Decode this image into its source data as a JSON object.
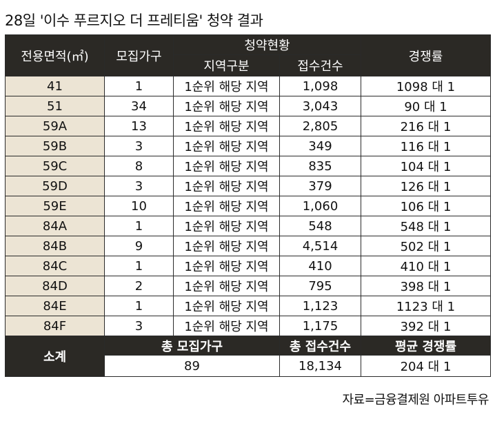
{
  "title": "28일 '이수 푸르지오 더 프레티움' 청약 결과",
  "headers": {
    "area": "전용면적(㎡)",
    "units": "모집가구",
    "status": "청약현황",
    "region": "지역구분",
    "applications": "접수건수",
    "ratio": "경쟁률"
  },
  "rows": [
    {
      "area": "41",
      "units": "1",
      "region": "1순위 해당 지역",
      "applications": "1,098",
      "ratio": "1098 대 1"
    },
    {
      "area": "51",
      "units": "34",
      "region": "1순위 해당 지역",
      "applications": "3,043",
      "ratio": "90 대 1"
    },
    {
      "area": "59A",
      "units": "13",
      "region": "1순위 해당 지역",
      "applications": "2,805",
      "ratio": "216 대 1"
    },
    {
      "area": "59B",
      "units": "3",
      "region": "1순위 해당 지역",
      "applications": "349",
      "ratio": "116 대 1"
    },
    {
      "area": "59C",
      "units": "8",
      "region": "1순위 해당 지역",
      "applications": "835",
      "ratio": "104 대 1"
    },
    {
      "area": "59D",
      "units": "3",
      "region": "1순위 해당 지역",
      "applications": "379",
      "ratio": "126 대 1"
    },
    {
      "area": "59E",
      "units": "10",
      "region": "1순위 해당 지역",
      "applications": "1,060",
      "ratio": "106 대 1"
    },
    {
      "area": "84A",
      "units": "1",
      "region": "1순위 해당 지역",
      "applications": "548",
      "ratio": "548 대 1"
    },
    {
      "area": "84B",
      "units": "9",
      "region": "1순위 해당 지역",
      "applications": "4,514",
      "ratio": "502 대 1"
    },
    {
      "area": "84C",
      "units": "1",
      "region": "1순위 해당 지역",
      "applications": "410",
      "ratio": "410 대 1"
    },
    {
      "area": "84D",
      "units": "2",
      "region": "1순위 해당 지역",
      "applications": "795",
      "ratio": "398 대 1"
    },
    {
      "area": "84E",
      "units": "1",
      "region": "1순위 해당 지역",
      "applications": "1,123",
      "ratio": "1123 대 1"
    },
    {
      "area": "84F",
      "units": "3",
      "region": "1순위 해당 지역",
      "applications": "1,175",
      "ratio": "392 대 1"
    }
  ],
  "summary": {
    "label": "소계",
    "total_units_label": "총 모집가구",
    "total_applications_label": "총 접수건수",
    "average_ratio_label": "평균 경쟁률",
    "total_units": "89",
    "total_applications": "18,134",
    "average_ratio": "204 대 1"
  },
  "source": "자료=금융결제원 아파트투유",
  "colors": {
    "header_bg": "#2b2925",
    "area_cell_bg": "#ece4d4",
    "border": "#2a2a2a"
  }
}
